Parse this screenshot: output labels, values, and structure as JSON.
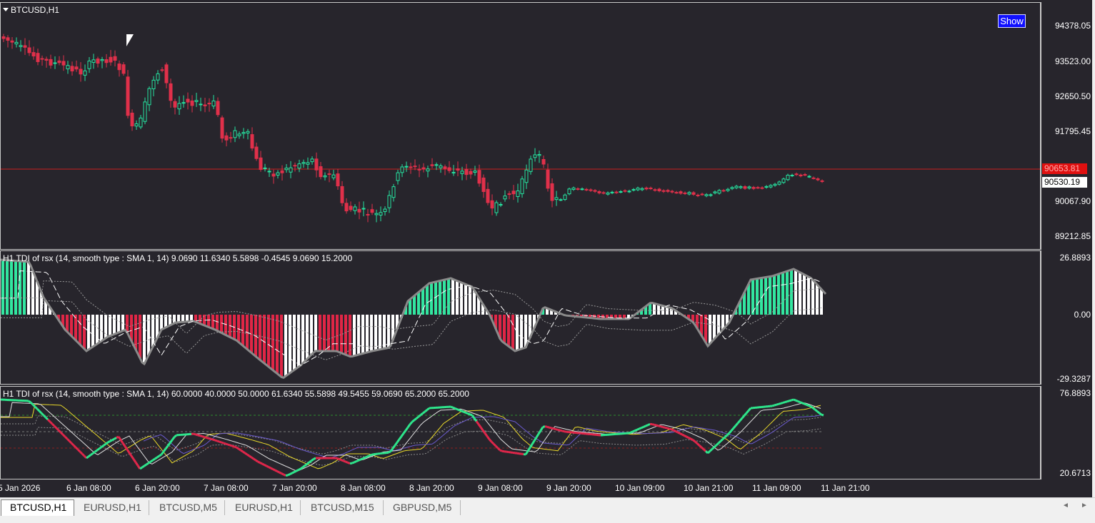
{
  "main_pane": {
    "symbol_label": "BTCUSD,H1",
    "show_button": "Show",
    "price_ticks": [
      "94378.05",
      "93523.00",
      "92650.50",
      "91795.45",
      "90067.90",
      "89212.85"
    ],
    "bid_tag": "90653.81",
    "ask_tag": "90530.19",
    "colors": {
      "bull": "#26e3a0",
      "bear": "#e0304a",
      "bid_line": "#c81e1e",
      "background": "#27252c"
    }
  },
  "indicator1": {
    "label": "H1  TDI of rsx  (14, smooth type :  SMA 1, 14) 9.0690 11.6340 5.5898 -0.4545 9.0690 15.2000",
    "ticks": [
      "26.8893",
      "0.00",
      "-29.3287"
    ],
    "colors": {
      "up": "#32e6a0",
      "down": "#e02646",
      "neutral": "#ffffff",
      "line": "#8a8a8a"
    }
  },
  "indicator2": {
    "label": "H1  TDI of rsx  (14, smooth type :  SMA 1, 14) 60.0000 40.0000 50.0000 61.6340 55.5898 49.5455 59.0690 65.2000 65.2000",
    "ticks": [
      "76.8893",
      "20.6713"
    ],
    "colors": {
      "up": "#2ee68c",
      "down": "#e0264a",
      "signal": "#e8d82a",
      "band": "#6a5acd",
      "level_high": "#2e8b2e",
      "level_low": "#8b2020"
    }
  },
  "time_axis": [
    "5 Jan 2026",
    "6 Jan 08:00",
    "6 Jan 20:00",
    "7 Jan 08:00",
    "7 Jan 20:00",
    "8 Jan 08:00",
    "8 Jan 20:00",
    "9 Jan 08:00",
    "9 Jan 20:00",
    "10 Jan 09:00",
    "10 Jan 21:00",
    "11 Jan 09:00",
    "11 Jan 21:00"
  ],
  "tabs": [
    "BTCUSD,H1",
    "EURUSD,H1",
    "BTCUSD,M5",
    "EURUSD,H1",
    "BTCUSD,M15",
    "GBPUSD,M5"
  ],
  "active_tab": "BTCUSD,H1"
}
